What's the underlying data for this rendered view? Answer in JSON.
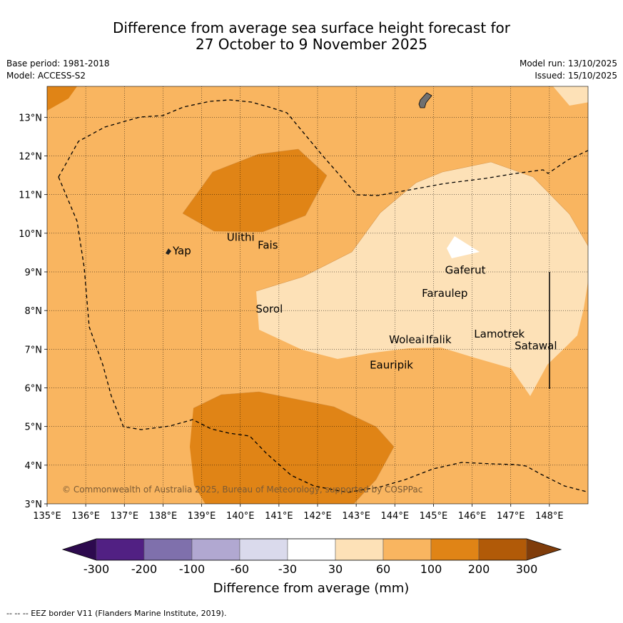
{
  "title": {
    "line1": "Difference from average sea surface height forecast for",
    "line2": "27 October to 9 November 2025"
  },
  "meta": {
    "base_period": "Base period: 1981-2018",
    "model": "Model: ACCESS-S2",
    "model_run": "Model run: 13/10/2025",
    "issued": "Issued: 15/10/2025"
  },
  "map": {
    "lon_range": [
      135,
      149
    ],
    "lat_range": [
      3,
      13.8
    ],
    "x_ticks": [
      "135°E",
      "136°E",
      "137°E",
      "138°E",
      "139°E",
      "140°E",
      "141°E",
      "142°E",
      "143°E",
      "144°E",
      "145°E",
      "146°E",
      "147°E",
      "148°E"
    ],
    "y_ticks": [
      "3°N",
      "4°N",
      "5°N",
      "6°N",
      "7°N",
      "8°N",
      "9°N",
      "10°N",
      "11°N",
      "12°N",
      "13°N"
    ],
    "places": [
      {
        "name": "Yap",
        "lon": 138.25,
        "lat": 9.45
      },
      {
        "name": "Ulithi",
        "lon": 139.65,
        "lat": 9.8
      },
      {
        "name": "Fais",
        "lon": 140.45,
        "lat": 9.6
      },
      {
        "name": "Gaferut",
        "lon": 145.3,
        "lat": 8.95
      },
      {
        "name": "Faraulep",
        "lon": 144.7,
        "lat": 8.35
      },
      {
        "name": "Sorol",
        "lon": 140.4,
        "lat": 7.95
      },
      {
        "name": "Woleai",
        "lon": 143.85,
        "lat": 7.15
      },
      {
        "name": "Ifalik",
        "lon": 144.8,
        "lat": 7.15
      },
      {
        "name": "Lamotrek",
        "lon": 146.05,
        "lat": 7.3
      },
      {
        "name": "Satawal",
        "lon": 147.1,
        "lat": 7.0
      },
      {
        "name": "Eauripik",
        "lon": 143.35,
        "lat": 6.5
      }
    ],
    "copyright": "© Commonwealth of Australia 2025, Bureau of Meteorology, supported by COSPPac"
  },
  "colorbar": {
    "labels": [
      "-300",
      "-200",
      "-100",
      "-60",
      "-30",
      "30",
      "60",
      "100",
      "200",
      "300"
    ],
    "colors": [
      "#512083",
      "#7f70ac",
      "#b1a8d1",
      "#dadaec",
      "#ffffff",
      "#fde1b7",
      "#f9b560",
      "#e08416",
      "#b15a08"
    ],
    "under_color": "#2d0a4e",
    "over_color": "#7f3c0a",
    "title": "Difference from average (mm)"
  },
  "footer": "--  --  -- EEZ border V11 (Flanders Marine Institute, 2019)."
}
